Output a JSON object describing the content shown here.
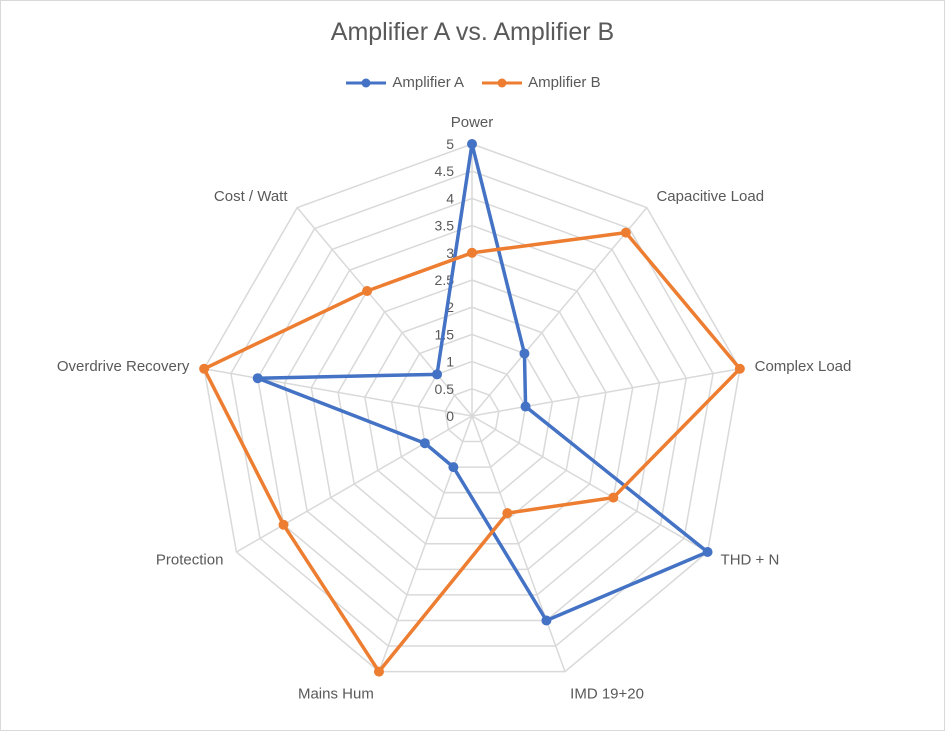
{
  "chart_data": {
    "type": "radar",
    "title": "Amplifier A vs. Amplifier B",
    "categories": [
      "Power",
      "Capacitive Load",
      "Complex Load",
      "THD + N",
      "IMD 19+20",
      "Mains Hum",
      "Protection",
      "Overdrive Recovery",
      "Cost / Watt"
    ],
    "rlim": [
      0,
      5
    ],
    "ticks": [
      "0",
      "0.5",
      "1",
      "1.5",
      "2",
      "2.5",
      "3",
      "3.5",
      "4",
      "4.5",
      "5"
    ],
    "legend_position": "top",
    "series": [
      {
        "name": "Amplifier A",
        "color": "#4472c4",
        "values": [
          5,
          1.5,
          1,
          5,
          4,
          1,
          1,
          4,
          1
        ]
      },
      {
        "name": "Amplifier B",
        "color": "#ed7d31",
        "values": [
          3,
          4.4,
          5,
          3,
          1.9,
          5,
          4,
          5,
          3
        ]
      }
    ]
  }
}
